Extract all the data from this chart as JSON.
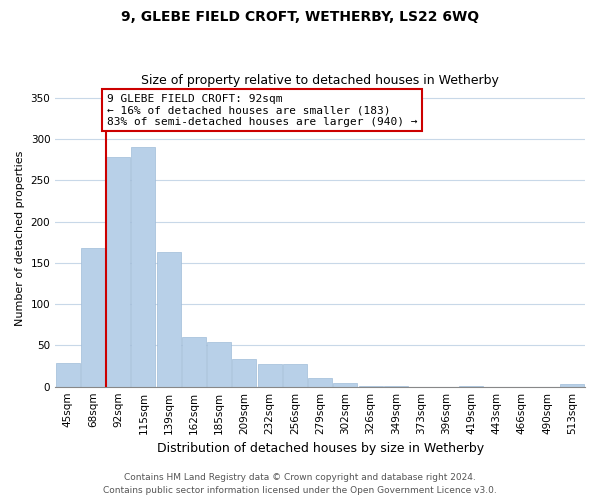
{
  "title": "9, GLEBE FIELD CROFT, WETHERBY, LS22 6WQ",
  "subtitle": "Size of property relative to detached houses in Wetherby",
  "xlabel": "Distribution of detached houses by size in Wetherby",
  "ylabel": "Number of detached properties",
  "bar_labels": [
    "45sqm",
    "68sqm",
    "92sqm",
    "115sqm",
    "139sqm",
    "162sqm",
    "185sqm",
    "209sqm",
    "232sqm",
    "256sqm",
    "279sqm",
    "302sqm",
    "326sqm",
    "349sqm",
    "373sqm",
    "396sqm",
    "419sqm",
    "443sqm",
    "466sqm",
    "490sqm",
    "513sqm"
  ],
  "bar_values": [
    29,
    168,
    278,
    291,
    163,
    60,
    54,
    33,
    27,
    27,
    10,
    5,
    1,
    1,
    0,
    0,
    1,
    0,
    0,
    0,
    3
  ],
  "highlight_index": 2,
  "bar_color": "#b8d0e8",
  "bar_edge_color": "#a0bcd8",
  "vline_color": "#cc0000",
  "annotation_line1": "9 GLEBE FIELD CROFT: 92sqm",
  "annotation_line2": "← 16% of detached houses are smaller (183)",
  "annotation_line3": "83% of semi-detached houses are larger (940) →",
  "annotation_box_color": "#ffffff",
  "annotation_box_edge": "#cc0000",
  "ylim": [
    0,
    360
  ],
  "yticks": [
    0,
    50,
    100,
    150,
    200,
    250,
    300,
    350
  ],
  "footer_line1": "Contains HM Land Registry data © Crown copyright and database right 2024.",
  "footer_line2": "Contains public sector information licensed under the Open Government Licence v3.0.",
  "background_color": "#ffffff",
  "grid_color": "#c8d8e8",
  "title_fontsize": 10,
  "subtitle_fontsize": 9,
  "ylabel_fontsize": 8,
  "xlabel_fontsize": 9,
  "tick_fontsize": 7.5,
  "annotation_fontsize": 8,
  "footer_fontsize": 6.5
}
